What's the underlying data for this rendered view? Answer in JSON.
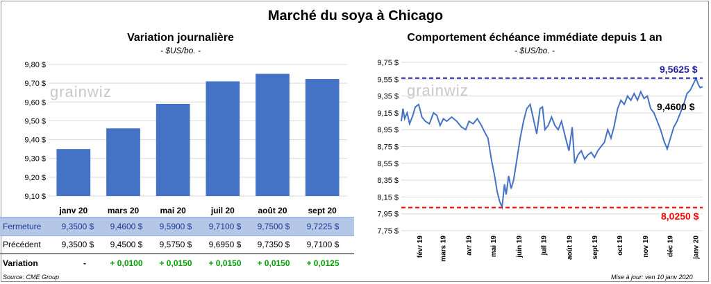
{
  "title": "Marché du soya à Chicago",
  "left": {
    "title": "Variation  journalière",
    "unit": "- $US/bo. -",
    "logo": "grainwiz",
    "table": {
      "close_label": "Fermeture",
      "prev_label": "Précédent",
      "var_label": "Variation",
      "close": [
        "9,3500  $",
        "9,4600  $",
        "9,5900  $",
        "9,7100  $",
        "9,7500  $",
        "9,7225  $"
      ],
      "prev": [
        "9,3500  $",
        "9,4500  $",
        "9,5750  $",
        "9,6950  $",
        "9,7350  $",
        "9,7100  $"
      ],
      "var": [
        "-",
        "+ 0,0100",
        "+ 0,0150",
        "+ 0,0150",
        "+ 0,0150",
        "+ 0,0125"
      ]
    },
    "source": "Source: CME Group"
  },
  "right": {
    "title": "Comportement  échéance immédiate depuis 1 an",
    "unit": "- $US/bo. -",
    "logo": "grainwiz",
    "high_label": "9,5625  $",
    "low_label": "8,0250  $",
    "last_label": "9,4600 $",
    "update": "Mise à jour: ven 10 janv 2020"
  },
  "chart_data": [
    {
      "type": "bar",
      "title": "Variation  journalière",
      "ylabel": "- $US/bo. -",
      "categories": [
        "janv 20",
        "mars 20",
        "mai 20",
        "juil 20",
        "août 20",
        "sept 20"
      ],
      "values": [
        9.35,
        9.46,
        9.59,
        9.71,
        9.75,
        9.7225
      ],
      "ylim": [
        9.1,
        9.8
      ],
      "yticks": [
        "9,10 $",
        "9,20 $",
        "9,30 $",
        "9,40 $",
        "9,50 $",
        "9,60 $",
        "9,70 $",
        "9,80 $"
      ],
      "ytick_values": [
        9.1,
        9.2,
        9.3,
        9.4,
        9.5,
        9.6,
        9.7,
        9.8
      ],
      "bar_color": "#4472c4",
      "grid": true
    },
    {
      "type": "line",
      "title": "Comportement  échéance immédiate depuis 1 an",
      "ylabel": "- $US/bo. -",
      "ylim": [
        7.75,
        9.75
      ],
      "yticks": [
        "7,75 $",
        "7,95 $",
        "8,15 $",
        "8,35 $",
        "8,55 $",
        "8,75 $",
        "8,95 $",
        "9,15 $",
        "9,35 $",
        "9,55 $",
        "9,75 $"
      ],
      "ytick_values": [
        7.75,
        7.95,
        8.15,
        8.35,
        8.55,
        8.75,
        8.95,
        9.15,
        9.35,
        9.55,
        9.75
      ],
      "xticks": [
        "févr 19",
        "mars 19",
        "avr 19",
        "mai 19",
        "juin 19",
        "juil 19",
        "août 19",
        "sept 19",
        "oct 19",
        "nov 19",
        "déc 19",
        "janv 20"
      ],
      "x_range": [
        "2019-01-10",
        "2020-01-10"
      ],
      "line_color": "#4472c4",
      "high": 9.5625,
      "low": 8.025,
      "last": 9.46,
      "high_color": "#1f1fa0",
      "low_color": "#ff0000",
      "grid": true,
      "series": [
        {
          "x": [
            "2019-01-10",
            "2019-01-12",
            "2019-01-14",
            "2019-01-17",
            "2019-01-20",
            "2019-01-24",
            "2019-01-27",
            "2019-01-31",
            "2019-02-04",
            "2019-02-08",
            "2019-02-13",
            "2019-02-18",
            "2019-02-22",
            "2019-02-26",
            "2019-03-02",
            "2019-03-06",
            "2019-03-12",
            "2019-03-18",
            "2019-03-24",
            "2019-03-29",
            "2019-04-02",
            "2019-04-07",
            "2019-04-12",
            "2019-04-17",
            "2019-04-21",
            "2019-04-25",
            "2019-04-29",
            "2019-05-03",
            "2019-05-06",
            "2019-05-09",
            "2019-05-12",
            "2019-05-15",
            "2019-05-17",
            "2019-05-20",
            "2019-05-23",
            "2019-05-26",
            "2019-05-30",
            "2019-06-03",
            "2019-06-07",
            "2019-06-11",
            "2019-06-15",
            "2019-06-19",
            "2019-06-23",
            "2019-06-27",
            "2019-06-30",
            "2019-07-03",
            "2019-07-07",
            "2019-07-11",
            "2019-07-15",
            "2019-07-19",
            "2019-07-23",
            "2019-07-28",
            "2019-08-01",
            "2019-08-05",
            "2019-08-08",
            "2019-08-12",
            "2019-08-16",
            "2019-08-20",
            "2019-08-24",
            "2019-08-28",
            "2019-09-01",
            "2019-09-05",
            "2019-09-09",
            "2019-09-13",
            "2019-09-17",
            "2019-09-21",
            "2019-09-25",
            "2019-09-29",
            "2019-10-03",
            "2019-10-07",
            "2019-10-11",
            "2019-10-15",
            "2019-10-19",
            "2019-10-23",
            "2019-10-27",
            "2019-10-31",
            "2019-11-04",
            "2019-11-08",
            "2019-11-12",
            "2019-11-16",
            "2019-11-20",
            "2019-11-24",
            "2019-11-28",
            "2019-12-02",
            "2019-12-06",
            "2019-12-10",
            "2019-12-14",
            "2019-12-18",
            "2019-12-22",
            "2019-12-26",
            "2019-12-30",
            "2020-01-02",
            "2020-01-05",
            "2020-01-07",
            "2020-01-10"
          ],
          "y": [
            9.05,
            9.2,
            9.08,
            9.15,
            9.02,
            9.12,
            9.22,
            9.25,
            9.1,
            9.05,
            9.02,
            9.15,
            9.12,
            9.0,
            9.08,
            9.05,
            9.1,
            9.05,
            8.98,
            8.95,
            9.05,
            9.02,
            9.08,
            9.0,
            8.92,
            8.85,
            8.6,
            8.4,
            8.22,
            8.1,
            8.03,
            8.3,
            8.18,
            8.4,
            8.25,
            8.35,
            8.6,
            8.85,
            9.05,
            9.2,
            9.25,
            9.08,
            8.9,
            9.2,
            9.22,
            8.95,
            9.0,
            9.1,
            9.0,
            8.95,
            9.05,
            8.85,
            8.7,
            8.98,
            8.55,
            8.65,
            8.7,
            8.6,
            8.65,
            8.68,
            8.62,
            8.7,
            8.75,
            8.8,
            8.95,
            8.85,
            9.0,
            9.2,
            9.3,
            9.25,
            9.35,
            9.3,
            9.38,
            9.3,
            9.4,
            9.32,
            9.35,
            9.2,
            9.15,
            9.05,
            8.95,
            8.82,
            8.72,
            8.85,
            8.98,
            9.05,
            9.15,
            9.25,
            9.38,
            9.42,
            9.5,
            9.56,
            9.48,
            9.45,
            9.46
          ]
        }
      ]
    }
  ]
}
